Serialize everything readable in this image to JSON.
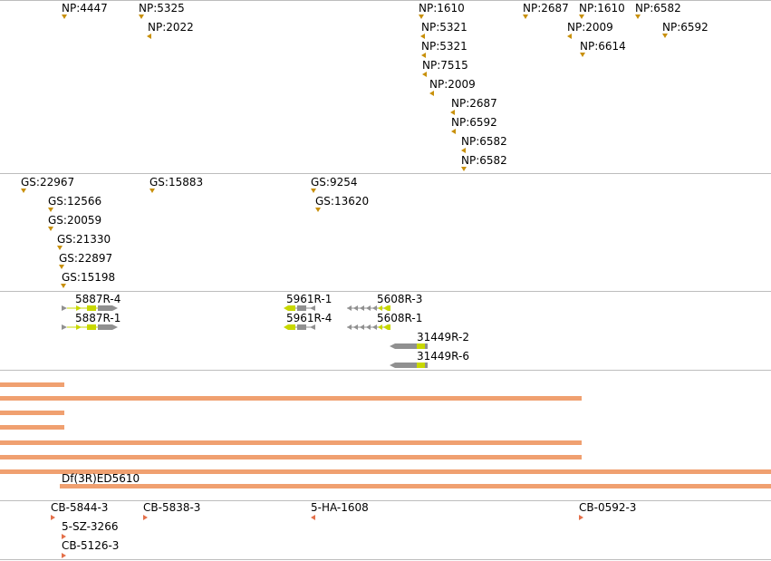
{
  "colors": {
    "feature_marker": "#c8900a",
    "deficiency_bar": "#f0a070",
    "construct_marker": "#e4704a",
    "gene_gray": "#909090",
    "gene_yellow": "#c8d800"
  },
  "np_track": {
    "items": [
      {
        "label": "NP:4447",
        "dir": "down"
      },
      {
        "label": "NP:5325",
        "dir": "down"
      },
      {
        "label": "NP:2022",
        "dir": "left"
      },
      {
        "label": "NP:1610",
        "dir": "down"
      },
      {
        "label": "NP:5321",
        "dir": "left"
      },
      {
        "label": "NP:5321",
        "dir": "left"
      },
      {
        "label": "NP:7515",
        "dir": "left"
      },
      {
        "label": "NP:2009",
        "dir": "left"
      },
      {
        "label": "NP:2687",
        "dir": "left"
      },
      {
        "label": "NP:6592",
        "dir": "left"
      },
      {
        "label": "NP:6582",
        "dir": "left"
      },
      {
        "label": "NP:6582",
        "dir": "down"
      },
      {
        "label": "NP:2687",
        "dir": "down"
      },
      {
        "label": "NP:1610",
        "dir": "down"
      },
      {
        "label": "NP:2009",
        "dir": "left"
      },
      {
        "label": "NP:6614",
        "dir": "down"
      },
      {
        "label": "NP:6582",
        "dir": "down"
      },
      {
        "label": "NP:6592",
        "dir": "down"
      }
    ]
  },
  "gs_track": {
    "items": [
      {
        "label": "GS:22967",
        "dir": "down"
      },
      {
        "label": "GS:12566",
        "dir": "down"
      },
      {
        "label": "GS:20059",
        "dir": "down"
      },
      {
        "label": "GS:21330",
        "dir": "down"
      },
      {
        "label": "GS:22897",
        "dir": "down"
      },
      {
        "label": "GS:15198",
        "dir": "down"
      },
      {
        "label": "GS:15883",
        "dir": "down"
      },
      {
        "label": "GS:9254",
        "dir": "down"
      },
      {
        "label": "GS:13620",
        "dir": "down"
      }
    ]
  },
  "gene_track": {
    "items": [
      {
        "label": "5887R-4"
      },
      {
        "label": "5887R-1"
      },
      {
        "label": "5961R-1"
      },
      {
        "label": "5961R-4"
      },
      {
        "label": "5608R-3"
      },
      {
        "label": "5608R-1"
      },
      {
        "label": "31449R-2"
      },
      {
        "label": "31449R-6"
      }
    ]
  },
  "deficiency_track": {
    "label": "Df(3R)ED5610"
  },
  "construct_track": {
    "items": [
      {
        "label": "CB-5844-3",
        "dir": "right"
      },
      {
        "label": "5-SZ-3266",
        "dir": "right"
      },
      {
        "label": "CB-5126-3",
        "dir": "right"
      },
      {
        "label": "CB-5838-3",
        "dir": "right"
      },
      {
        "label": "5-HA-1608",
        "dir": "left"
      },
      {
        "label": "CB-0592-3",
        "dir": "right"
      }
    ]
  }
}
